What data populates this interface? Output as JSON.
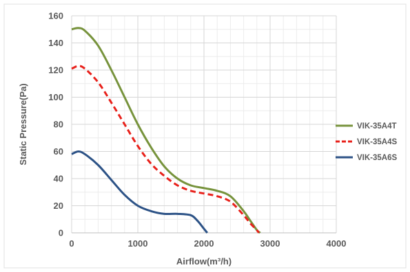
{
  "chart_data": {
    "type": "line",
    "title": "",
    "xlabel": "Airflow(m³/h)",
    "ylabel": "Static Pressure(Pa)",
    "xlim": [
      0,
      4000
    ],
    "ylim": [
      0,
      160
    ],
    "xticks": [
      0,
      1000,
      2000,
      3000,
      4000
    ],
    "yticks": [
      0,
      20,
      40,
      60,
      80,
      100,
      120,
      140,
      160
    ],
    "grid": true,
    "legend_position": "right",
    "series": [
      {
        "name": "VIK-35A4T",
        "color": "#77933C",
        "dash": "solid",
        "x": [
          0,
          100,
          200,
          400,
          600,
          800,
          1000,
          1200,
          1400,
          1600,
          1800,
          2000,
          2200,
          2400,
          2600,
          2700,
          2800,
          2850
        ],
        "y": [
          150,
          151,
          149,
          138,
          120,
          100,
          80,
          63,
          49,
          40,
          35,
          33,
          31,
          27,
          16,
          9,
          2,
          0
        ]
      },
      {
        "name": "VIK-35A4S",
        "color": "#E8201A",
        "dash": "dashed",
        "x": [
          0,
          100,
          200,
          400,
          600,
          800,
          1000,
          1200,
          1400,
          1600,
          1800,
          2000,
          2200,
          2400,
          2600,
          2700,
          2800,
          2830
        ],
        "y": [
          121,
          123,
          121,
          111,
          96,
          80,
          64,
          51,
          42,
          35,
          31,
          29,
          27,
          23,
          13,
          7,
          2,
          0
        ]
      },
      {
        "name": "VIK-35A6S",
        "color": "#2C5286",
        "dash": "solid",
        "x": [
          0,
          100,
          200,
          400,
          600,
          800,
          1000,
          1200,
          1400,
          1600,
          1800,
          1900,
          2000,
          2050
        ],
        "y": [
          58,
          60,
          58,
          50,
          39,
          28,
          20,
          16,
          14,
          14,
          13,
          9,
          3,
          0
        ]
      }
    ]
  }
}
